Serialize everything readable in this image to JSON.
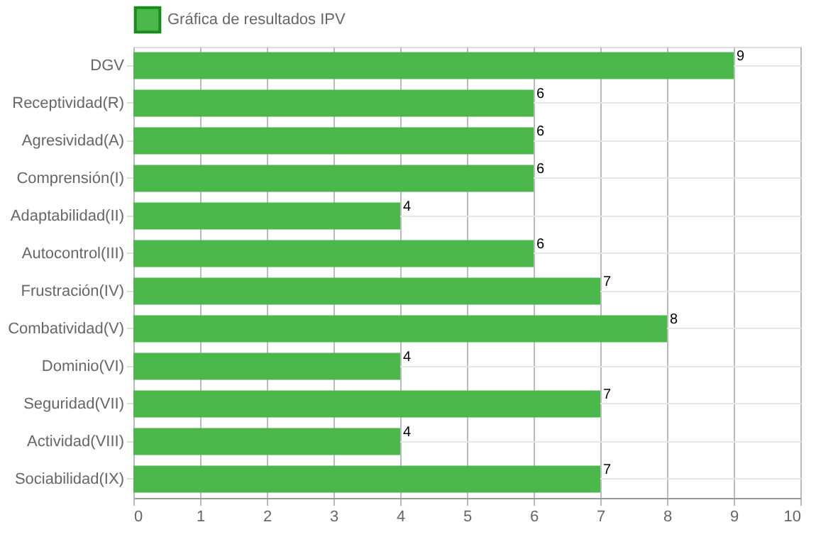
{
  "chart_data": {
    "type": "bar",
    "orientation": "horizontal",
    "categories": [
      "DGV",
      "Receptividad(R)",
      "Agresividad(A)",
      "Comprensión(I)",
      "Adaptabilidad(II)",
      "Autocontrol(III)",
      "Frustración(IV)",
      "Combatividad(V)",
      "Dominio(VI)",
      "Seguridad(VII)",
      "Actividad(VIII)",
      "Sociabilidad(IX)"
    ],
    "series": [
      {
        "name": "Gráfica de resultados IPV",
        "color": "#4cb84c",
        "values": [
          9,
          6,
          6,
          6,
          4,
          6,
          7,
          8,
          4,
          7,
          4,
          7
        ]
      }
    ],
    "xlim": [
      0,
      10
    ],
    "xticks": [
      0,
      1,
      2,
      3,
      4,
      5,
      6,
      7,
      8,
      9,
      10
    ],
    "grid": true,
    "legend": "top",
    "data_labels": true
  }
}
